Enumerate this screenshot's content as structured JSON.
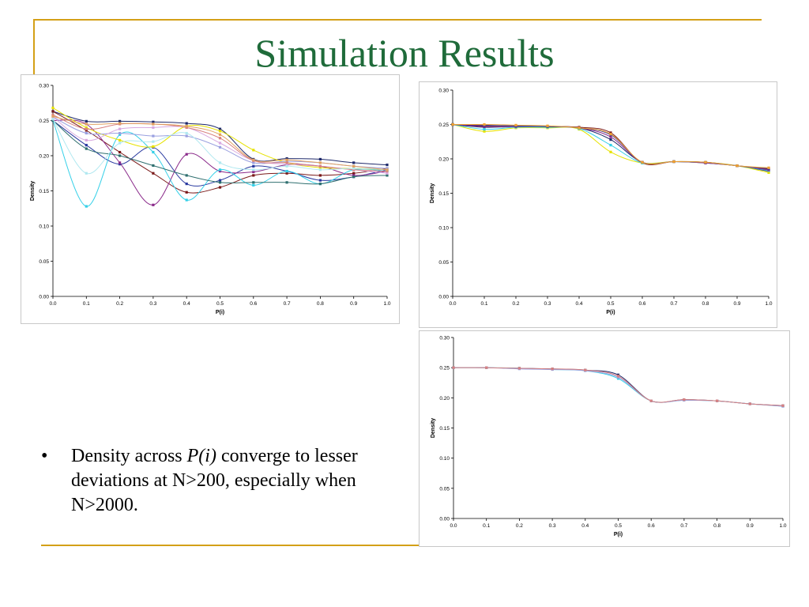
{
  "slide": {
    "title": "Simulation Results",
    "bullet": {
      "symbol": "•",
      "lead": "Density across ",
      "emphasis": "P(i)",
      "rest": " converge to lesser deviations at N>200, especially when N>2000."
    },
    "colors": {
      "title": "#1f6b3a",
      "rule": "#d4a017"
    }
  },
  "chart_data": [
    {
      "type": "line",
      "title": "",
      "xlabel": "P(i)",
      "ylabel": "Density",
      "xlim": [
        0.0,
        1.0
      ],
      "ylim": [
        0.0,
        0.3
      ],
      "xticks": [
        "0.0",
        "0.1",
        "0.2",
        "0.3",
        "0.4",
        "0.5",
        "0.6",
        "0.7",
        "0.8",
        "0.9",
        "1.0"
      ],
      "yticks": [
        "0.00",
        "0.05",
        "0.10",
        "0.15",
        "0.20",
        "0.25",
        "0.30"
      ],
      "grid": false,
      "x": [
        0.0,
        0.1,
        0.2,
        0.3,
        0.4,
        0.5,
        0.6,
        0.7,
        0.8,
        0.9,
        1.0
      ],
      "series": [
        {
          "color": "#1f2a6b",
          "values": [
            0.263,
            0.249,
            0.249,
            0.248,
            0.246,
            0.238,
            0.195,
            0.196,
            0.195,
            0.19,
            0.187
          ]
        },
        {
          "color": "#7a1a1a",
          "values": [
            0.263,
            0.236,
            0.205,
            0.175,
            0.148,
            0.155,
            0.172,
            0.175,
            0.172,
            0.175,
            0.182
          ]
        },
        {
          "color": "#2a3aa0",
          "values": [
            0.25,
            0.215,
            0.188,
            0.212,
            0.16,
            0.165,
            0.185,
            0.178,
            0.165,
            0.17,
            0.18
          ]
        },
        {
          "color": "#8a2a8a",
          "values": [
            0.25,
            0.245,
            0.19,
            0.13,
            0.202,
            0.178,
            0.177,
            0.187,
            0.185,
            0.172,
            0.178
          ]
        },
        {
          "color": "#35d0e8",
          "values": [
            0.25,
            0.128,
            0.23,
            0.205,
            0.137,
            0.18,
            0.158,
            0.178,
            0.16,
            0.18,
            0.178
          ]
        },
        {
          "color": "#2f6f6f",
          "values": [
            0.25,
            0.21,
            0.2,
            0.186,
            0.172,
            0.162,
            0.162,
            0.162,
            0.16,
            0.17,
            0.172
          ]
        },
        {
          "color": "#e6e200",
          "values": [
            0.268,
            0.24,
            0.222,
            0.213,
            0.242,
            0.235,
            0.208,
            0.19,
            0.183,
            0.182,
            0.18
          ]
        },
        {
          "color": "#9aa0e0",
          "values": [
            0.255,
            0.232,
            0.232,
            0.228,
            0.228,
            0.212,
            0.19,
            0.192,
            0.19,
            0.185,
            0.182
          ]
        },
        {
          "color": "#d8a8e0",
          "values": [
            0.255,
            0.222,
            0.238,
            0.24,
            0.24,
            0.218,
            0.193,
            0.188,
            0.185,
            0.18,
            0.175
          ]
        },
        {
          "color": "#d88080",
          "values": [
            0.258,
            0.238,
            0.245,
            0.245,
            0.24,
            0.225,
            0.193,
            0.19,
            0.185,
            0.18,
            0.178
          ]
        },
        {
          "color": "#b0e8f0",
          "values": [
            0.252,
            0.175,
            0.218,
            0.22,
            0.232,
            0.19,
            0.18,
            0.185,
            0.18,
            0.182,
            0.18
          ]
        },
        {
          "color": "#e0a060",
          "values": [
            0.256,
            0.245,
            0.246,
            0.245,
            0.242,
            0.23,
            0.194,
            0.194,
            0.19,
            0.185,
            0.18
          ]
        }
      ]
    },
    {
      "type": "line",
      "title": "",
      "xlabel": "P(i)",
      "ylabel": "Density",
      "xlim": [
        0.0,
        1.0
      ],
      "ylim": [
        0.0,
        0.3
      ],
      "xticks": [
        "0.0",
        "0.1",
        "0.2",
        "0.3",
        "0.4",
        "0.5",
        "0.6",
        "0.7",
        "0.8",
        "0.9",
        "1.0"
      ],
      "yticks": [
        "0.00",
        "0.05",
        "0.10",
        "0.15",
        "0.20",
        "0.25",
        "0.30"
      ],
      "grid": false,
      "x": [
        0.0,
        0.1,
        0.2,
        0.3,
        0.4,
        0.5,
        0.6,
        0.7,
        0.8,
        0.9,
        1.0
      ],
      "series": [
        {
          "color": "#1f2a6b",
          "values": [
            0.25,
            0.246,
            0.247,
            0.247,
            0.245,
            0.228,
            0.195,
            0.196,
            0.194,
            0.19,
            0.182
          ]
        },
        {
          "color": "#7a1a1a",
          "values": [
            0.25,
            0.248,
            0.248,
            0.247,
            0.246,
            0.238,
            0.194,
            0.196,
            0.195,
            0.19,
            0.185
          ]
        },
        {
          "color": "#e6e200",
          "values": [
            0.25,
            0.24,
            0.245,
            0.245,
            0.243,
            0.21,
            0.194,
            0.196,
            0.195,
            0.19,
            0.18
          ]
        },
        {
          "color": "#35d0e8",
          "values": [
            0.25,
            0.243,
            0.246,
            0.246,
            0.244,
            0.22,
            0.194,
            0.196,
            0.194,
            0.19,
            0.183
          ]
        },
        {
          "color": "#8a2a8a",
          "values": [
            0.25,
            0.247,
            0.247,
            0.247,
            0.245,
            0.232,
            0.195,
            0.196,
            0.194,
            0.19,
            0.184
          ]
        },
        {
          "color": "#2a3aa0",
          "values": [
            0.25,
            0.249,
            0.248,
            0.247,
            0.245,
            0.235,
            0.195,
            0.196,
            0.195,
            0.19,
            0.186
          ]
        },
        {
          "color": "#f0a030",
          "values": [
            0.25,
            0.25,
            0.249,
            0.248,
            0.245,
            0.236,
            0.195,
            0.196,
            0.195,
            0.19,
            0.187
          ]
        }
      ]
    },
    {
      "type": "line",
      "title": "",
      "xlabel": "P(i)",
      "ylabel": "Density",
      "xlim": [
        0.0,
        1.0
      ],
      "ylim": [
        0.0,
        0.3
      ],
      "xticks": [
        "0.0",
        "0.1",
        "0.2",
        "0.3",
        "0.4",
        "0.5",
        "0.6",
        "0.7",
        "0.8",
        "0.9",
        "1.0"
      ],
      "yticks": [
        "0.00",
        "0.05",
        "0.10",
        "0.15",
        "0.20",
        "0.25",
        "0.30"
      ],
      "grid": false,
      "x": [
        0.0,
        0.1,
        0.2,
        0.3,
        0.4,
        0.5,
        0.6,
        0.7,
        0.8,
        0.9,
        1.0
      ],
      "series": [
        {
          "color": "#1f2a6b",
          "values": [
            0.25,
            0.25,
            0.249,
            0.248,
            0.246,
            0.238,
            0.195,
            0.197,
            0.195,
            0.19,
            0.187
          ]
        },
        {
          "color": "#35d0e8",
          "values": [
            0.25,
            0.25,
            0.249,
            0.247,
            0.245,
            0.232,
            0.195,
            0.196,
            0.195,
            0.19,
            0.186
          ]
        },
        {
          "color": "#9aa0e0",
          "values": [
            0.25,
            0.25,
            0.248,
            0.247,
            0.245,
            0.234,
            0.195,
            0.196,
            0.195,
            0.19,
            0.186
          ]
        },
        {
          "color": "#d88080",
          "values": [
            0.25,
            0.25,
            0.249,
            0.248,
            0.246,
            0.236,
            0.195,
            0.197,
            0.195,
            0.19,
            0.187
          ]
        }
      ]
    }
  ]
}
